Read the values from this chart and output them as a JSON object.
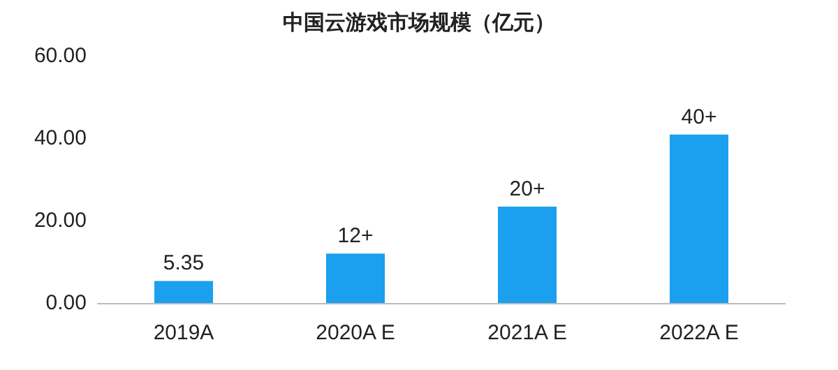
{
  "chart_data": {
    "type": "bar",
    "title": "中国云游戏市场规模（亿元）",
    "categories": [
      "2019A",
      "2020A E",
      "2021A E",
      "2022A E"
    ],
    "values": [
      5.35,
      12,
      23.4,
      40.9
    ],
    "value_labels": [
      "5.35",
      "12+",
      "20+",
      "40+"
    ],
    "color": "#1aa0ee",
    "ylim": [
      0,
      60
    ],
    "yticks": [
      {
        "value": 0,
        "label": "0.00"
      },
      {
        "value": 20,
        "label": "20.00"
      },
      {
        "value": 40,
        "label": "40.00"
      },
      {
        "value": 60,
        "label": "60.00"
      }
    ],
    "grid": false
  }
}
